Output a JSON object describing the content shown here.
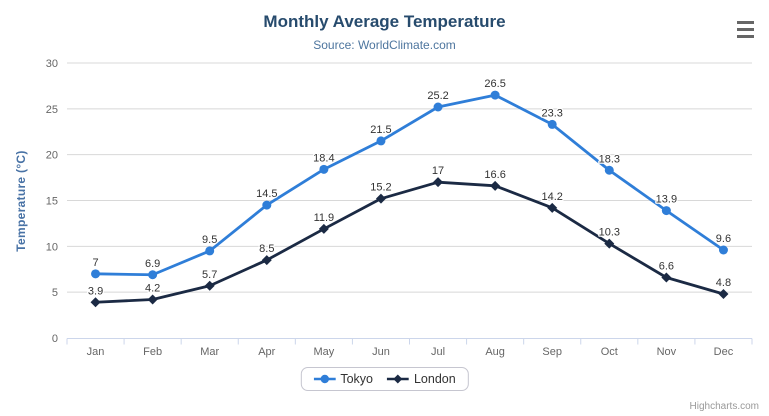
{
  "chart_data": {
    "type": "line",
    "title": "Monthly Average Temperature",
    "subtitle": "Source: WorldClimate.com",
    "categories": [
      "Jan",
      "Feb",
      "Mar",
      "Apr",
      "May",
      "Jun",
      "Jul",
      "Aug",
      "Sep",
      "Oct",
      "Nov",
      "Dec"
    ],
    "series": [
      {
        "name": "Tokyo",
        "color": "#2f7ed8",
        "marker": "circle",
        "values": [
          7,
          6.9,
          9.5,
          14.5,
          18.4,
          21.5,
          25.2,
          26.5,
          23.3,
          18.3,
          13.9,
          9.6
        ]
      },
      {
        "name": "London",
        "color": "#1b2a44",
        "marker": "diamond",
        "values": [
          3.9,
          4.2,
          5.7,
          8.5,
          11.9,
          15.2,
          17,
          16.6,
          14.2,
          10.3,
          6.6,
          4.8
        ]
      }
    ],
    "xlabel": "",
    "ylabel": "Temperature (°C)",
    "ylim": [
      0,
      30
    ],
    "yticks": [
      0,
      5,
      10,
      15,
      20,
      25,
      30
    ],
    "ytick_interval": 5,
    "grid": true,
    "data_labels": true,
    "legend_position": "bottom-center"
  },
  "credit": "Highcharts.com",
  "colors": {
    "grid": "#d8d8d8",
    "axis_line": "#ccd6eb",
    "tick_label": "#666666",
    "data_label": "#333333",
    "title": "#274b6d",
    "subtitle": "#4d759e",
    "yaxis_title": "#4872a5",
    "legend_border": "#c6c6d0",
    "legend_text": "#333333",
    "credit": "#999999",
    "menu_icon": "#666666"
  }
}
